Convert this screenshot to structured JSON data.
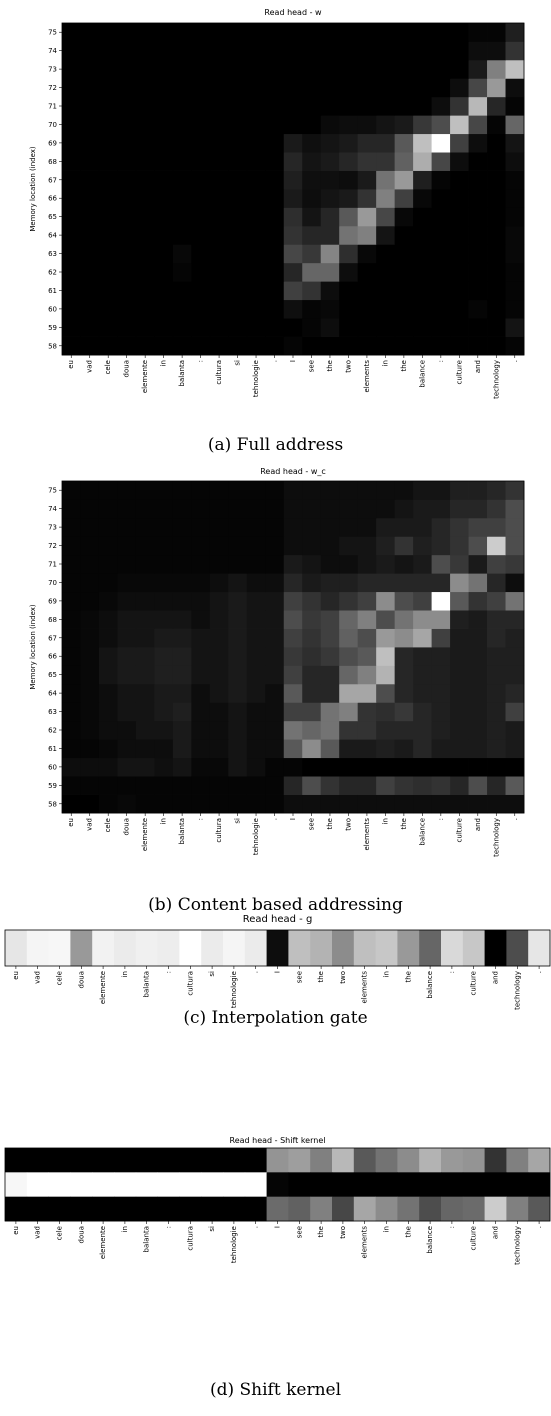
{
  "tokens": [
    "eu",
    "vad",
    "cele",
    "doua",
    "elemente",
    "in",
    "balanta",
    ":",
    "cultura",
    "si",
    "tehnologie",
    ".",
    "I",
    "see",
    "the",
    "two",
    "elements",
    "in",
    "the",
    "balance",
    ":",
    "culture",
    "and",
    "technology",
    "."
  ],
  "chart_data": [
    {
      "id": "full",
      "type": "heatmap",
      "title": "Read head - w",
      "caption": "(a) Full address",
      "ylabel": "Memory location (index)",
      "y_ticks": [
        58,
        59,
        60,
        61,
        62,
        63,
        64,
        65,
        66,
        67,
        68,
        69,
        70,
        71,
        72,
        73,
        74,
        75
      ],
      "x_ticks_source": "tokens",
      "values": [
        [
          0,
          0,
          0,
          0,
          0,
          0,
          0,
          0,
          0,
          0,
          0,
          0,
          0.02,
          0,
          0,
          0,
          0,
          0,
          0,
          0,
          0,
          0,
          0,
          0,
          0.02
        ],
        [
          0,
          0,
          0,
          0,
          0,
          0,
          0,
          0,
          0,
          0,
          0,
          0,
          0,
          0.02,
          0.05,
          0,
          0,
          0,
          0,
          0,
          0,
          0,
          0,
          0,
          0.08
        ],
        [
          0,
          0,
          0,
          0,
          0,
          0,
          0,
          0,
          0,
          0,
          0,
          0,
          0.06,
          0.02,
          0.03,
          0,
          0,
          0,
          0,
          0,
          0,
          0,
          0.02,
          0,
          0.02
        ],
        [
          0,
          0,
          0,
          0,
          0,
          0,
          0,
          0,
          0,
          0,
          0,
          0,
          0.25,
          0.2,
          0.05,
          0,
          0,
          0,
          0,
          0,
          0,
          0,
          0,
          0,
          0.02
        ],
        [
          0,
          0,
          0,
          0,
          0,
          0,
          0.02,
          0,
          0,
          0,
          0,
          0,
          0.15,
          0.4,
          0.4,
          0.05,
          0,
          0,
          0,
          0,
          0,
          0,
          0,
          0,
          0.02
        ],
        [
          0,
          0,
          0,
          0,
          0,
          0,
          0.03,
          0,
          0,
          0,
          0,
          0,
          0.28,
          0.22,
          0.52,
          0.18,
          0.03,
          0,
          0,
          0,
          0,
          0,
          0,
          0,
          0.03
        ],
        [
          0,
          0,
          0,
          0,
          0,
          0,
          0,
          0,
          0,
          0,
          0,
          0,
          0.2,
          0.15,
          0.15,
          0.45,
          0.5,
          0.08,
          0,
          0,
          0,
          0,
          0,
          0,
          0.03
        ],
        [
          0,
          0,
          0,
          0,
          0,
          0,
          0,
          0,
          0,
          0,
          0,
          0,
          0.18,
          0.08,
          0.15,
          0.35,
          0.6,
          0.28,
          0.03,
          0,
          0,
          0,
          0,
          0,
          0.02
        ],
        [
          0,
          0,
          0,
          0,
          0,
          0,
          0,
          0,
          0,
          0,
          0,
          0,
          0.1,
          0.05,
          0.08,
          0.1,
          0.2,
          0.5,
          0.25,
          0.03,
          0,
          0,
          0,
          0,
          0.02
        ],
        [
          0,
          0,
          0,
          0,
          0,
          0,
          0,
          0,
          0,
          0,
          0,
          0,
          0.12,
          0.06,
          0.06,
          0.05,
          0.1,
          0.45,
          0.6,
          0.12,
          0.02,
          0,
          0,
          0,
          0.02
        ],
        [
          0,
          0,
          0,
          0,
          0,
          0,
          0,
          0,
          0,
          0,
          0,
          0,
          0.15,
          0.08,
          0.1,
          0.15,
          0.2,
          0.2,
          0.38,
          0.68,
          0.28,
          0.05,
          0,
          0,
          0.05
        ],
        [
          0,
          0,
          0,
          0,
          0,
          0,
          0,
          0,
          0,
          0,
          0,
          0,
          0.1,
          0.06,
          0.08,
          0.1,
          0.15,
          0.15,
          0.35,
          0.75,
          1.0,
          0.25,
          0.05,
          0,
          0.08
        ],
        [
          0,
          0,
          0,
          0,
          0,
          0,
          0,
          0,
          0,
          0,
          0,
          0,
          0,
          0,
          0.04,
          0.05,
          0.05,
          0.08,
          0.1,
          0.22,
          0.3,
          0.75,
          0.28,
          0.02,
          0.4
        ],
        [
          0,
          0,
          0,
          0,
          0,
          0,
          0,
          0,
          0,
          0,
          0,
          0,
          0,
          0,
          0,
          0,
          0,
          0,
          0,
          0,
          0.05,
          0.2,
          0.72,
          0.15,
          0.02
        ],
        [
          0,
          0,
          0,
          0,
          0,
          0,
          0,
          0,
          0,
          0,
          0,
          0,
          0,
          0,
          0,
          0,
          0,
          0,
          0,
          0,
          0,
          0.05,
          0.28,
          0.6,
          0.05
        ],
        [
          0,
          0,
          0,
          0,
          0,
          0,
          0,
          0,
          0,
          0,
          0,
          0,
          0,
          0,
          0,
          0,
          0,
          0,
          0,
          0,
          0,
          0,
          0.1,
          0.5,
          0.75
        ],
        [
          0,
          0,
          0,
          0,
          0,
          0,
          0,
          0,
          0,
          0,
          0,
          0,
          0,
          0,
          0,
          0,
          0,
          0,
          0,
          0,
          0,
          0,
          0.05,
          0.05,
          0.2
        ],
        [
          0,
          0,
          0,
          0,
          0,
          0,
          0,
          0,
          0,
          0,
          0,
          0,
          0,
          0,
          0,
          0,
          0,
          0,
          0,
          0,
          0,
          0,
          0.02,
          0.02,
          0.12
        ]
      ]
    },
    {
      "id": "content",
      "type": "heatmap",
      "title": "Read head - w_c",
      "caption": "(b) Content based addressing",
      "ylabel": "Memory location (index)",
      "y_ticks": [
        58,
        59,
        60,
        61,
        62,
        63,
        64,
        65,
        66,
        67,
        68,
        69,
        70,
        71,
        72,
        73,
        74,
        75
      ],
      "x_ticks_source": "tokens",
      "values": [
        [
          0,
          0,
          0.02,
          0.03,
          0.02,
          0.02,
          0.02,
          0.02,
          0.02,
          0.02,
          0.02,
          0.02,
          0.05,
          0.05,
          0.05,
          0.05,
          0.05,
          0.05,
          0.05,
          0.05,
          0.05,
          0.05,
          0.05,
          0.05,
          0.05
        ],
        [
          0.02,
          0.02,
          0.02,
          0.02,
          0.02,
          0.02,
          0.02,
          0.02,
          0.02,
          0.02,
          0.02,
          0.02,
          0.15,
          0.3,
          0.2,
          0.15,
          0.15,
          0.25,
          0.2,
          0.18,
          0.2,
          0.15,
          0.3,
          0.15,
          0.35
        ],
        [
          0.05,
          0.05,
          0.05,
          0.08,
          0.08,
          0.06,
          0.08,
          0.03,
          0.03,
          0.08,
          0.05,
          0.02,
          0.02,
          0,
          0,
          0,
          0,
          0,
          0,
          0,
          0,
          0,
          0,
          0,
          0
        ],
        [
          0.02,
          0.02,
          0.03,
          0.05,
          0.05,
          0.05,
          0.1,
          0.05,
          0.05,
          0.08,
          0.05,
          0.05,
          0.35,
          0.55,
          0.35,
          0.1,
          0.1,
          0.12,
          0.1,
          0.15,
          0.1,
          0.1,
          0.1,
          0.12,
          0.1
        ],
        [
          0.02,
          0.03,
          0.05,
          0.05,
          0.08,
          0.08,
          0.1,
          0.05,
          0.05,
          0.08,
          0.05,
          0.05,
          0.45,
          0.4,
          0.45,
          0.2,
          0.2,
          0.15,
          0.15,
          0.15,
          0.12,
          0.1,
          0.1,
          0.12,
          0.1
        ],
        [
          0.02,
          0.03,
          0.05,
          0.08,
          0.08,
          0.1,
          0.12,
          0.05,
          0.05,
          0.08,
          0.05,
          0.05,
          0.25,
          0.25,
          0.45,
          0.5,
          0.2,
          0.18,
          0.22,
          0.15,
          0.12,
          0.1,
          0.1,
          0.12,
          0.25
        ],
        [
          0.02,
          0.03,
          0.05,
          0.08,
          0.08,
          0.1,
          0.1,
          0.05,
          0.08,
          0.1,
          0.08,
          0.05,
          0.35,
          0.15,
          0.15,
          0.65,
          0.65,
          0.3,
          0.15,
          0.12,
          0.12,
          0.1,
          0.1,
          0.12,
          0.15
        ],
        [
          0.02,
          0.03,
          0.08,
          0.1,
          0.1,
          0.12,
          0.12,
          0.08,
          0.08,
          0.1,
          0.08,
          0.08,
          0.25,
          0.15,
          0.15,
          0.4,
          0.5,
          0.7,
          0.15,
          0.12,
          0.12,
          0.1,
          0.1,
          0.12,
          0.12
        ],
        [
          0.02,
          0.03,
          0.08,
          0.1,
          0.1,
          0.12,
          0.12,
          0.08,
          0.08,
          0.1,
          0.08,
          0.08,
          0.22,
          0.18,
          0.22,
          0.3,
          0.35,
          0.75,
          0.15,
          0.12,
          0.12,
          0.1,
          0.1,
          0.12,
          0.12
        ],
        [
          0.02,
          0.03,
          0.05,
          0.08,
          0.08,
          0.1,
          0.1,
          0.08,
          0.08,
          0.1,
          0.08,
          0.08,
          0.25,
          0.2,
          0.25,
          0.38,
          0.3,
          0.6,
          0.55,
          0.65,
          0.25,
          0.1,
          0.1,
          0.15,
          0.12
        ],
        [
          0.02,
          0.03,
          0.05,
          0.08,
          0.08,
          0.08,
          0.08,
          0.05,
          0.08,
          0.1,
          0.08,
          0.08,
          0.3,
          0.22,
          0.25,
          0.4,
          0.5,
          0.3,
          0.45,
          0.55,
          0.55,
          0.12,
          0.1,
          0.15,
          0.15
        ],
        [
          0.02,
          0.02,
          0.03,
          0.05,
          0.05,
          0.05,
          0.05,
          0.05,
          0.08,
          0.1,
          0.08,
          0.08,
          0.25,
          0.2,
          0.15,
          0.2,
          0.25,
          0.55,
          0.3,
          0.25,
          1.0,
          0.35,
          0.2,
          0.25,
          0.45
        ],
        [
          0.02,
          0.02,
          0.02,
          0.03,
          0.03,
          0.03,
          0.03,
          0.03,
          0.05,
          0.08,
          0.05,
          0.05,
          0.15,
          0.1,
          0.12,
          0.12,
          0.15,
          0.15,
          0.15,
          0.15,
          0.15,
          0.55,
          0.45,
          0.15,
          0.05
        ],
        [
          0.02,
          0.02,
          0.02,
          0.02,
          0.02,
          0.02,
          0.02,
          0.02,
          0.02,
          0.02,
          0.02,
          0.02,
          0.1,
          0.08,
          0.05,
          0.05,
          0.08,
          0.1,
          0.08,
          0.1,
          0.3,
          0.22,
          0.1,
          0.25,
          0.22
        ],
        [
          0.02,
          0.02,
          0.02,
          0.02,
          0.02,
          0.02,
          0.02,
          0.02,
          0.02,
          0.02,
          0.02,
          0.02,
          0.05,
          0.05,
          0.05,
          0.08,
          0.08,
          0.12,
          0.2,
          0.12,
          0.15,
          0.2,
          0.3,
          0.8,
          0.3
        ],
        [
          0.02,
          0.02,
          0.02,
          0.02,
          0.02,
          0.02,
          0.02,
          0.02,
          0.02,
          0.02,
          0.02,
          0.02,
          0.05,
          0.05,
          0.05,
          0.05,
          0.05,
          0.1,
          0.1,
          0.1,
          0.15,
          0.2,
          0.25,
          0.25,
          0.3
        ],
        [
          0.02,
          0.02,
          0.02,
          0.02,
          0.02,
          0.02,
          0.02,
          0.02,
          0.02,
          0.02,
          0.02,
          0.02,
          0.05,
          0.05,
          0.05,
          0.05,
          0.05,
          0.05,
          0.08,
          0.1,
          0.1,
          0.15,
          0.15,
          0.2,
          0.3
        ],
        [
          0.02,
          0.02,
          0.02,
          0.02,
          0.02,
          0.02,
          0.02,
          0.02,
          0.02,
          0.02,
          0.02,
          0.02,
          0.05,
          0.05,
          0.05,
          0.05,
          0.05,
          0.05,
          0.05,
          0.08,
          0.08,
          0.12,
          0.12,
          0.15,
          0.2
        ]
      ]
    },
    {
      "id": "gate",
      "type": "heatmap",
      "title": "Read head - g",
      "caption": "(c) Interpolation gate",
      "x_ticks_source": "tokens",
      "values": [
        [
          0.9,
          0.96,
          0.97,
          0.6,
          0.95,
          0.92,
          0.94,
          0.93,
          1.0,
          0.92,
          0.96,
          0.92,
          0.05,
          0.75,
          0.7,
          0.55,
          0.75,
          0.78,
          0.6,
          0.4,
          0.85,
          0.78,
          0.0,
          0.3,
          0.9
        ]
      ]
    },
    {
      "id": "shift",
      "type": "heatmap",
      "title": "Read head - Shift kernel",
      "caption": "(d) Shift kernel",
      "x_ticks_source": "tokens",
      "values": [
        [
          0,
          0,
          0,
          0,
          0,
          0,
          0,
          0,
          0,
          0,
          0,
          0,
          0.58,
          0.62,
          0.5,
          0.72,
          0.35,
          0.45,
          0.55,
          0.7,
          0.6,
          0.58,
          0.2,
          0.5,
          0.65
        ],
        [
          0.97,
          1,
          1,
          1,
          1,
          1,
          1,
          1,
          1,
          1,
          1,
          1,
          0.02,
          0,
          0,
          0,
          0,
          0,
          0,
          0,
          0,
          0,
          0,
          0,
          0
        ],
        [
          0,
          0,
          0,
          0,
          0,
          0,
          0,
          0,
          0,
          0,
          0,
          0,
          0.42,
          0.38,
          0.5,
          0.28,
          0.65,
          0.55,
          0.45,
          0.3,
          0.4,
          0.42,
          0.8,
          0.5,
          0.35
        ]
      ]
    }
  ]
}
